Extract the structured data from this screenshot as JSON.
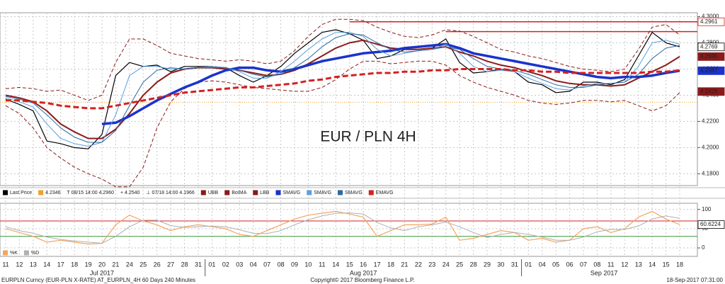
{
  "chart_data": [
    {
      "type": "line",
      "title": "EUR / PLN 4H",
      "title_color": "#cc1f1f",
      "categories": [
        "11",
        "12",
        "13",
        "14",
        "17",
        "18",
        "19",
        "20",
        "21",
        "24",
        "25",
        "26",
        "27",
        "28",
        "31",
        "01",
        "02",
        "03",
        "04",
        "07",
        "08",
        "09",
        "10",
        "11",
        "14",
        "15",
        "16",
        "17",
        "18",
        "21",
        "22",
        "23",
        "24",
        "25",
        "28",
        "29",
        "30",
        "31",
        "01",
        "04",
        "05",
        "06",
        "07",
        "08",
        "11",
        "12",
        "13",
        "14",
        "15",
        "18"
      ],
      "months": [
        "Jul 2017",
        "Aug 2017",
        "Sep 2017"
      ],
      "ylim": [
        4.171,
        4.303
      ],
      "yticks": [
        {
          "value": 4.18,
          "label": "4.1800"
        },
        {
          "value": 4.2,
          "label": "4.2000"
        },
        {
          "value": 4.22,
          "label": "4.2200"
        },
        {
          "value": 4.24,
          "label": "4.2400"
        },
        {
          "value": 4.26,
          "label": "4.2600"
        },
        {
          "value": 4.28,
          "label": "4.2800"
        },
        {
          "value": 4.3,
          "label": "4.3000"
        }
      ],
      "grid": true,
      "series": [
        {
          "name": "Last Price",
          "color": "#000000",
          "width": 1.2,
          "dash": false,
          "values": [
            4.237,
            4.233,
            4.228,
            4.205,
            4.203,
            4.2,
            4.199,
            4.21,
            4.255,
            4.265,
            4.262,
            4.263,
            4.258,
            4.262,
            4.262,
            4.262,
            4.261,
            4.255,
            4.25,
            4.255,
            4.262,
            4.272,
            4.28,
            4.288,
            4.29,
            4.287,
            4.282,
            4.268,
            4.27,
            4.275,
            4.275,
            4.276,
            4.283,
            4.265,
            4.257,
            4.258,
            4.26,
            4.258,
            4.25,
            4.248,
            4.242,
            4.243,
            4.25,
            4.25,
            4.248,
            4.252,
            4.27,
            4.288,
            4.28,
            4.277
          ]
        },
        {
          "name": "UBB",
          "color": "#8b1a1a",
          "width": 1,
          "dash": true,
          "values": [
            4.245,
            4.246,
            4.245,
            4.243,
            4.244,
            4.24,
            4.236,
            4.24,
            4.265,
            4.283,
            4.283,
            4.278,
            4.272,
            4.27,
            4.268,
            4.267,
            4.266,
            4.267,
            4.266,
            4.264,
            4.266,
            4.274,
            4.285,
            4.294,
            4.298,
            4.298,
            4.297,
            4.292,
            4.288,
            4.285,
            4.284,
            4.286,
            4.29,
            4.289,
            4.285,
            4.28,
            4.275,
            4.273,
            4.27,
            4.268,
            4.265,
            4.262,
            4.26,
            4.259,
            4.258,
            4.26,
            4.275,
            4.292,
            4.294,
            4.286
          ]
        },
        {
          "name": "BoIMA",
          "color": "#8b1a1a",
          "width": 2,
          "dash": false,
          "values": [
            4.24,
            4.238,
            4.235,
            4.228,
            4.218,
            4.212,
            4.207,
            4.207,
            4.214,
            4.226,
            4.24,
            4.25,
            4.257,
            4.26,
            4.261,
            4.261,
            4.26,
            4.259,
            4.257,
            4.255,
            4.256,
            4.259,
            4.264,
            4.27,
            4.276,
            4.28,
            4.282,
            4.279,
            4.276,
            4.275,
            4.275,
            4.276,
            4.277,
            4.273,
            4.27,
            4.266,
            4.263,
            4.261,
            4.258,
            4.255,
            4.251,
            4.249,
            4.248,
            4.248,
            4.247,
            4.248,
            4.253,
            4.258,
            4.263,
            4.2695
          ]
        },
        {
          "name": "LBB",
          "color": "#8b1a1a",
          "width": 1,
          "dash": true,
          "values": [
            4.232,
            4.226,
            4.215,
            4.2,
            4.192,
            4.185,
            4.18,
            4.176,
            4.17,
            4.17,
            4.185,
            4.215,
            4.235,
            4.245,
            4.25,
            4.251,
            4.25,
            4.248,
            4.246,
            4.245,
            4.244,
            4.243,
            4.243,
            4.246,
            4.252,
            4.26,
            4.266,
            4.266,
            4.264,
            4.265,
            4.266,
            4.266,
            4.263,
            4.255,
            4.25,
            4.246,
            4.243,
            4.24,
            4.236,
            4.234,
            4.233,
            4.234,
            4.236,
            4.236,
            4.235,
            4.236,
            4.232,
            4.228,
            4.232,
            4.242
          ]
        },
        {
          "name": "SMAVG",
          "color": "#1a33cc",
          "width": 3.5,
          "dash": false,
          "values": [
            null,
            null,
            null,
            null,
            null,
            null,
            null,
            4.218,
            4.219,
            4.224,
            4.23,
            4.236,
            4.241,
            4.246,
            4.25,
            4.255,
            4.259,
            4.261,
            4.261,
            4.259,
            4.258,
            4.26,
            4.263,
            4.266,
            4.268,
            4.27,
            4.272,
            4.273,
            4.274,
            4.276,
            4.277,
            4.278,
            4.279,
            4.276,
            4.272,
            4.27,
            4.268,
            4.266,
            4.264,
            4.262,
            4.26,
            4.258,
            4.256,
            4.254,
            4.253,
            4.254,
            4.254,
            4.255,
            4.257,
            4.2587
          ]
        },
        {
          "name": "SMAVG",
          "color": "#5aa0e0",
          "width": 1,
          "dash": false,
          "values": [
            4.238,
            4.235,
            4.231,
            4.218,
            4.207,
            4.203,
            4.201,
            4.204,
            4.225,
            4.255,
            4.262,
            4.262,
            4.26,
            4.26,
            4.261,
            4.262,
            4.261,
            4.258,
            4.253,
            4.253,
            4.258,
            4.266,
            4.275,
            4.283,
            4.288,
            4.288,
            4.285,
            4.275,
            4.27,
            4.272,
            4.274,
            4.275,
            4.279,
            4.272,
            4.262,
            4.258,
            4.259,
            4.258,
            4.253,
            4.249,
            4.245,
            4.244,
            4.247,
            4.249,
            4.249,
            4.25,
            4.262,
            4.28,
            4.282,
            4.279
          ]
        },
        {
          "name": "SMAVG",
          "color": "#2a6aa0",
          "width": 1,
          "dash": false,
          "values": [
            4.239,
            4.237,
            4.234,
            4.225,
            4.215,
            4.208,
            4.204,
            4.204,
            4.213,
            4.232,
            4.25,
            4.259,
            4.261,
            4.26,
            4.261,
            4.261,
            4.261,
            4.259,
            4.256,
            4.254,
            4.256,
            4.261,
            4.268,
            4.277,
            4.284,
            4.287,
            4.286,
            4.28,
            4.275,
            4.273,
            4.274,
            4.275,
            4.277,
            4.275,
            4.268,
            4.262,
            4.26,
            4.259,
            4.256,
            4.252,
            4.248,
            4.246,
            4.246,
            4.248,
            4.249,
            4.25,
            4.256,
            4.268,
            4.276,
            4.278
          ]
        },
        {
          "name": "EMAVG",
          "color": "#d42020",
          "width": 3,
          "dash": true,
          "values": [
            4.236,
            4.236,
            4.235,
            4.234,
            4.232,
            4.231,
            4.23,
            4.23,
            4.232,
            4.234,
            4.236,
            4.238,
            4.24,
            4.242,
            4.243,
            4.244,
            4.245,
            4.246,
            4.246,
            4.247,
            4.248,
            4.249,
            4.251,
            4.252,
            4.254,
            4.255,
            4.256,
            4.257,
            4.257,
            4.258,
            4.258,
            4.259,
            4.259,
            4.26,
            4.26,
            4.26,
            4.26,
            4.259,
            4.259,
            4.258,
            4.258,
            4.257,
            4.257,
            4.257,
            4.257,
            4.257,
            4.257,
            4.258,
            4.258,
            4.259
          ]
        }
      ],
      "legend_stats": [
        {
          "value": 4.2346,
          "color": "#f0a030"
        },
        {
          "label": "T 08/15 14:00 4.2960"
        },
        {
          "label": "+ 4.2540"
        },
        {
          "label": "⊥ 07/18 14:00 4.1966"
        }
      ],
      "levels": [
        {
          "value": 4.2961,
          "color": "#d42020"
        },
        {
          "value": 4.2886,
          "color": "#d42020"
        }
      ],
      "price_tags": [
        {
          "value": 4.2961,
          "color": "#ffffff",
          "text_color": "#d42020"
        },
        {
          "value": 4.2769,
          "color": "#ffffff",
          "text_color": "#000000"
        },
        {
          "value": 4.2695,
          "color": "#8b1a1a",
          "text_color": "#ffffff"
        },
        {
          "value": 4.2587,
          "color": "#1a33cc",
          "text_color": "#ffffff"
        },
        {
          "value": 4.2428,
          "color": "#8b1a1a",
          "text_color": "#ffffff"
        }
      ]
    },
    {
      "type": "line",
      "ylim": [
        -22,
        116
      ],
      "yticks": [
        0,
        50,
        100
      ],
      "grid": true,
      "series": [
        {
          "name": "%K",
          "color": "#f4a460",
          "width": 1.2,
          "dash": false,
          "values": [
            50,
            40,
            30,
            15,
            20,
            15,
            10,
            12,
            60,
            85,
            70,
            60,
            45,
            55,
            60,
            55,
            50,
            35,
            30,
            45,
            60,
            75,
            85,
            90,
            95,
            88,
            80,
            30,
            45,
            60,
            60,
            62,
            80,
            20,
            25,
            35,
            45,
            40,
            20,
            25,
            15,
            20,
            50,
            55,
            40,
            50,
            80,
            95,
            75,
            60.6224
          ]
        },
        {
          "name": "%D",
          "color": "#b0b0b0",
          "width": 1,
          "dash": false,
          "values": [
            55,
            45,
            38,
            28,
            22,
            18,
            15,
            12,
            30,
            55,
            72,
            72,
            58,
            53,
            55,
            57,
            55,
            47,
            38,
            37,
            45,
            60,
            73,
            83,
            90,
            91,
            88,
            66,
            52,
            45,
            55,
            60,
            67,
            55,
            40,
            27,
            35,
            40,
            35,
            28,
            20,
            20,
            28,
            42,
            48,
            48,
            57,
            75,
            83,
            77
          ]
        }
      ],
      "levels": [
        {
          "value": 70,
          "color": "#d42020"
        },
        {
          "value": 30,
          "color": "#3a9a3a"
        }
      ],
      "price_tags": [
        {
          "value": 60.6224,
          "color": "#ffffff",
          "text_color": "#000000"
        }
      ]
    }
  ],
  "footer": {
    "left": "EURPLN Curncy (EUR-PLN X-RATE) AT_EURPLN_4H 60 Days 240 Minutes",
    "center": "Copyright© 2017 Bloomberg Finance L.P.",
    "right": "18-Sep-2017 07:31:00"
  }
}
